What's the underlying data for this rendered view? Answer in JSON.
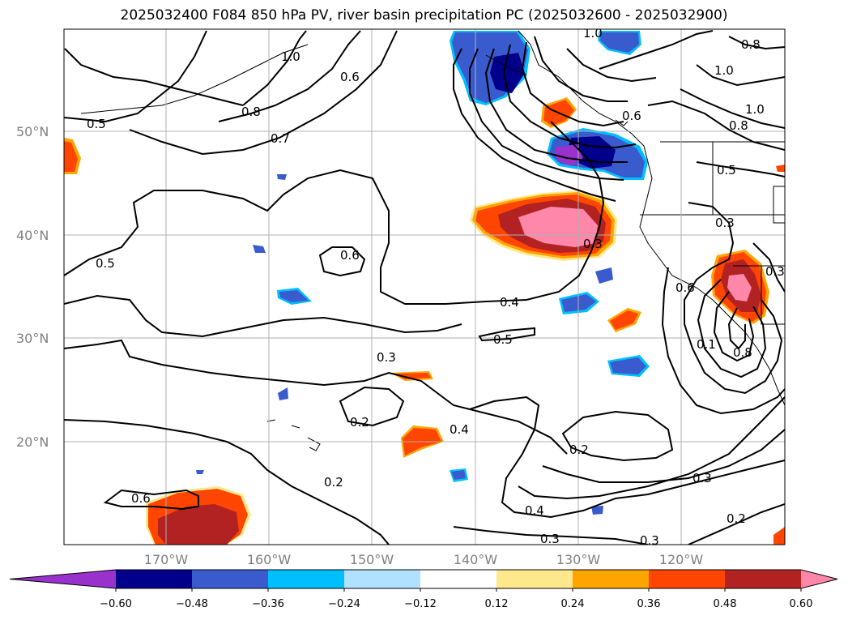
{
  "title": "2025032400 F084 850 hPa PV, river basin precipitation PC (2025032600 - 2025032900)",
  "map": {
    "lat_labels": [
      "50°N",
      "40°N",
      "30°N",
      "20°N"
    ],
    "lon_labels": [
      "170°W",
      "160°W",
      "150°W",
      "140°W",
      "130°W",
      "120°W"
    ],
    "pv_contour_labels": [
      "0.5",
      "0.8",
      "0.7",
      "0.6",
      "1.0",
      "0.6",
      "0.5",
      "0.6",
      "0.4",
      "0.5",
      "0.3",
      "0.2",
      "0.4",
      "0.2",
      "0.2",
      "0.3",
      "0.4",
      "0.3",
      "0.2",
      "0.3",
      "0.8",
      "1.0",
      "0.8",
      "1.0",
      "0.6",
      "0.5",
      "0.3",
      "0.3",
      "0.3",
      "0.6",
      "0.1",
      "0.8"
    ]
  },
  "colorbar": {
    "ticks": [
      "−0.60",
      "−0.48",
      "−0.36",
      "−0.24",
      "−0.12",
      "0.12",
      "0.24",
      "0.36",
      "0.48",
      "0.60"
    ],
    "colors": [
      "#9932cc",
      "#00008b",
      "#3a5bcd",
      "#00bfff",
      "#b0e2ff",
      "#ffffff",
      "#ffe88c",
      "#ffa500",
      "#ff4500",
      "#b22222",
      "#ff88aa"
    ]
  }
}
